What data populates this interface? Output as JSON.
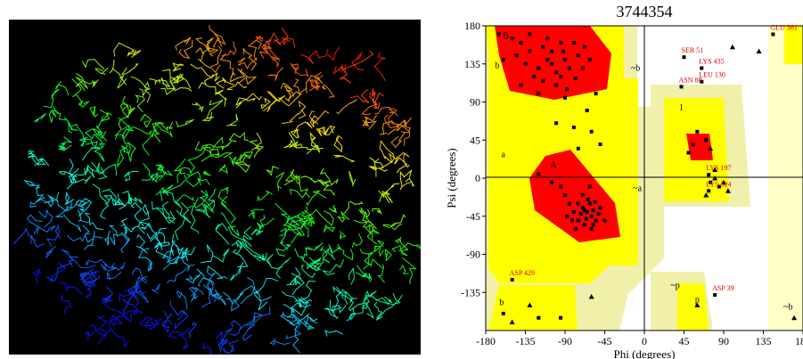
{
  "chart_data": {
    "type": "scatter",
    "title": "3744354",
    "x_label": "Phi (degrees)",
    "y_label": "Psi (degrees)",
    "xlim": [
      -180,
      180
    ],
    "ylim": [
      -180,
      180
    ],
    "xticks": [
      -180,
      -135,
      -90,
      -45,
      0,
      45,
      90,
      135,
      180
    ],
    "yticks": [
      -135,
      -90,
      -45,
      0,
      45,
      90,
      135,
      180
    ],
    "series": [
      {
        "marker": "square",
        "color": "#000000",
        "x": [
          -120,
          -110,
          -100,
          -130,
          -95,
          -85,
          -140,
          -115,
          -105,
          -90,
          -125,
          -75,
          -135,
          -100,
          -80,
          -150,
          -110,
          -95,
          -120,
          -70,
          -88,
          -140,
          -62,
          -130,
          -105,
          -115,
          -78,
          -145,
          -92,
          -68,
          -65,
          -80,
          -60,
          -75,
          -50,
          -100,
          -55,
          -160,
          -165,
          -90,
          -65,
          -60,
          -70,
          -75,
          -58,
          -62,
          -68,
          -80,
          -55,
          -72,
          -64,
          -85,
          -60,
          -50,
          -78,
          -66,
          -90,
          -56,
          -70,
          -95,
          -105,
          -120,
          -62,
          -45,
          -75,
          -82,
          -68,
          -58,
          -88,
          -52,
          -150,
          -95,
          -160,
          -120,
          45,
          65,
          65,
          42,
          146,
          80,
          73,
          73,
          60,
          55,
          70,
          75,
          85,
          50
        ],
        "values": [
          130,
          140,
          125,
          150,
          160,
          130,
          160,
          115,
          150,
          140,
          120,
          145,
          135,
          110,
          160,
          165,
          165,
          120,
          100,
          130,
          105,
          110,
          140,
          170,
          135,
          155,
          118,
          145,
          150,
          155,
          80,
          60,
          55,
          35,
          40,
          65,
          100,
          140,
          170,
          95,
          -40,
          -45,
          -35,
          -50,
          -38,
          -30,
          -55,
          -40,
          -50,
          -42,
          -25,
          -30,
          -60,
          -35,
          -60,
          -48,
          -20,
          -28,
          -20,
          -10,
          -5,
          5,
          -10,
          -50,
          -30,
          -50,
          -38,
          -55,
          -45,
          -42,
          -120,
          -165,
          -160,
          -165,
          143,
          130,
          114,
          108,
          170,
          -138,
          4,
          -15,
          55,
          40,
          45,
          -5,
          -10,
          30
        ]
      },
      {
        "marker": "triangle",
        "color": "#000000",
        "x": [
          100,
          80,
          90,
          95,
          70,
          -150,
          60,
          -130,
          170,
          130,
          80,
          -60,
          75
        ],
        "values": [
          155,
          10,
          -5,
          -15,
          -20,
          -170,
          -150,
          -150,
          -165,
          150,
          0,
          -140,
          35
        ]
      }
    ],
    "annotations": [
      {
        "text": "SER 51",
        "x": 45,
        "y": 143
      },
      {
        "text": "LYS 435",
        "x": 65,
        "y": 130
      },
      {
        "text": "LEU 130",
        "x": 65,
        "y": 114
      },
      {
        "text": "ASN 88",
        "x": 42,
        "y": 108
      },
      {
        "text": "GLU 361",
        "x": 146,
        "y": 170
      },
      {
        "text": "ASP 429",
        "x": -150,
        "y": -120
      },
      {
        "text": "ASP 39",
        "x": 80,
        "y": -138
      },
      {
        "text": "LYS 197",
        "x": 73,
        "y": 4
      },
      {
        "text": "LYS 324",
        "x": 73,
        "y": -15
      }
    ],
    "region_labels": [
      {
        "text": "B",
        "x": -157,
        "y": 165
      },
      {
        "text": "b",
        "x": -167,
        "y": 130
      },
      {
        "text": "~b",
        "x": -10,
        "y": 127
      },
      {
        "text": "a",
        "x": -160,
        "y": 25
      },
      {
        "text": "A",
        "x": -103,
        "y": 12
      },
      {
        "text": "~a",
        "x": -8,
        "y": -15
      },
      {
        "text": "l",
        "x": 42,
        "y": 80
      },
      {
        "text": "~p",
        "x": 35,
        "y": -130
      },
      {
        "text": "p",
        "x": 60,
        "y": -147
      },
      {
        "text": "b",
        "x": -162,
        "y": -150
      },
      {
        "text": "~b",
        "x": 163,
        "y": -155
      }
    ]
  }
}
